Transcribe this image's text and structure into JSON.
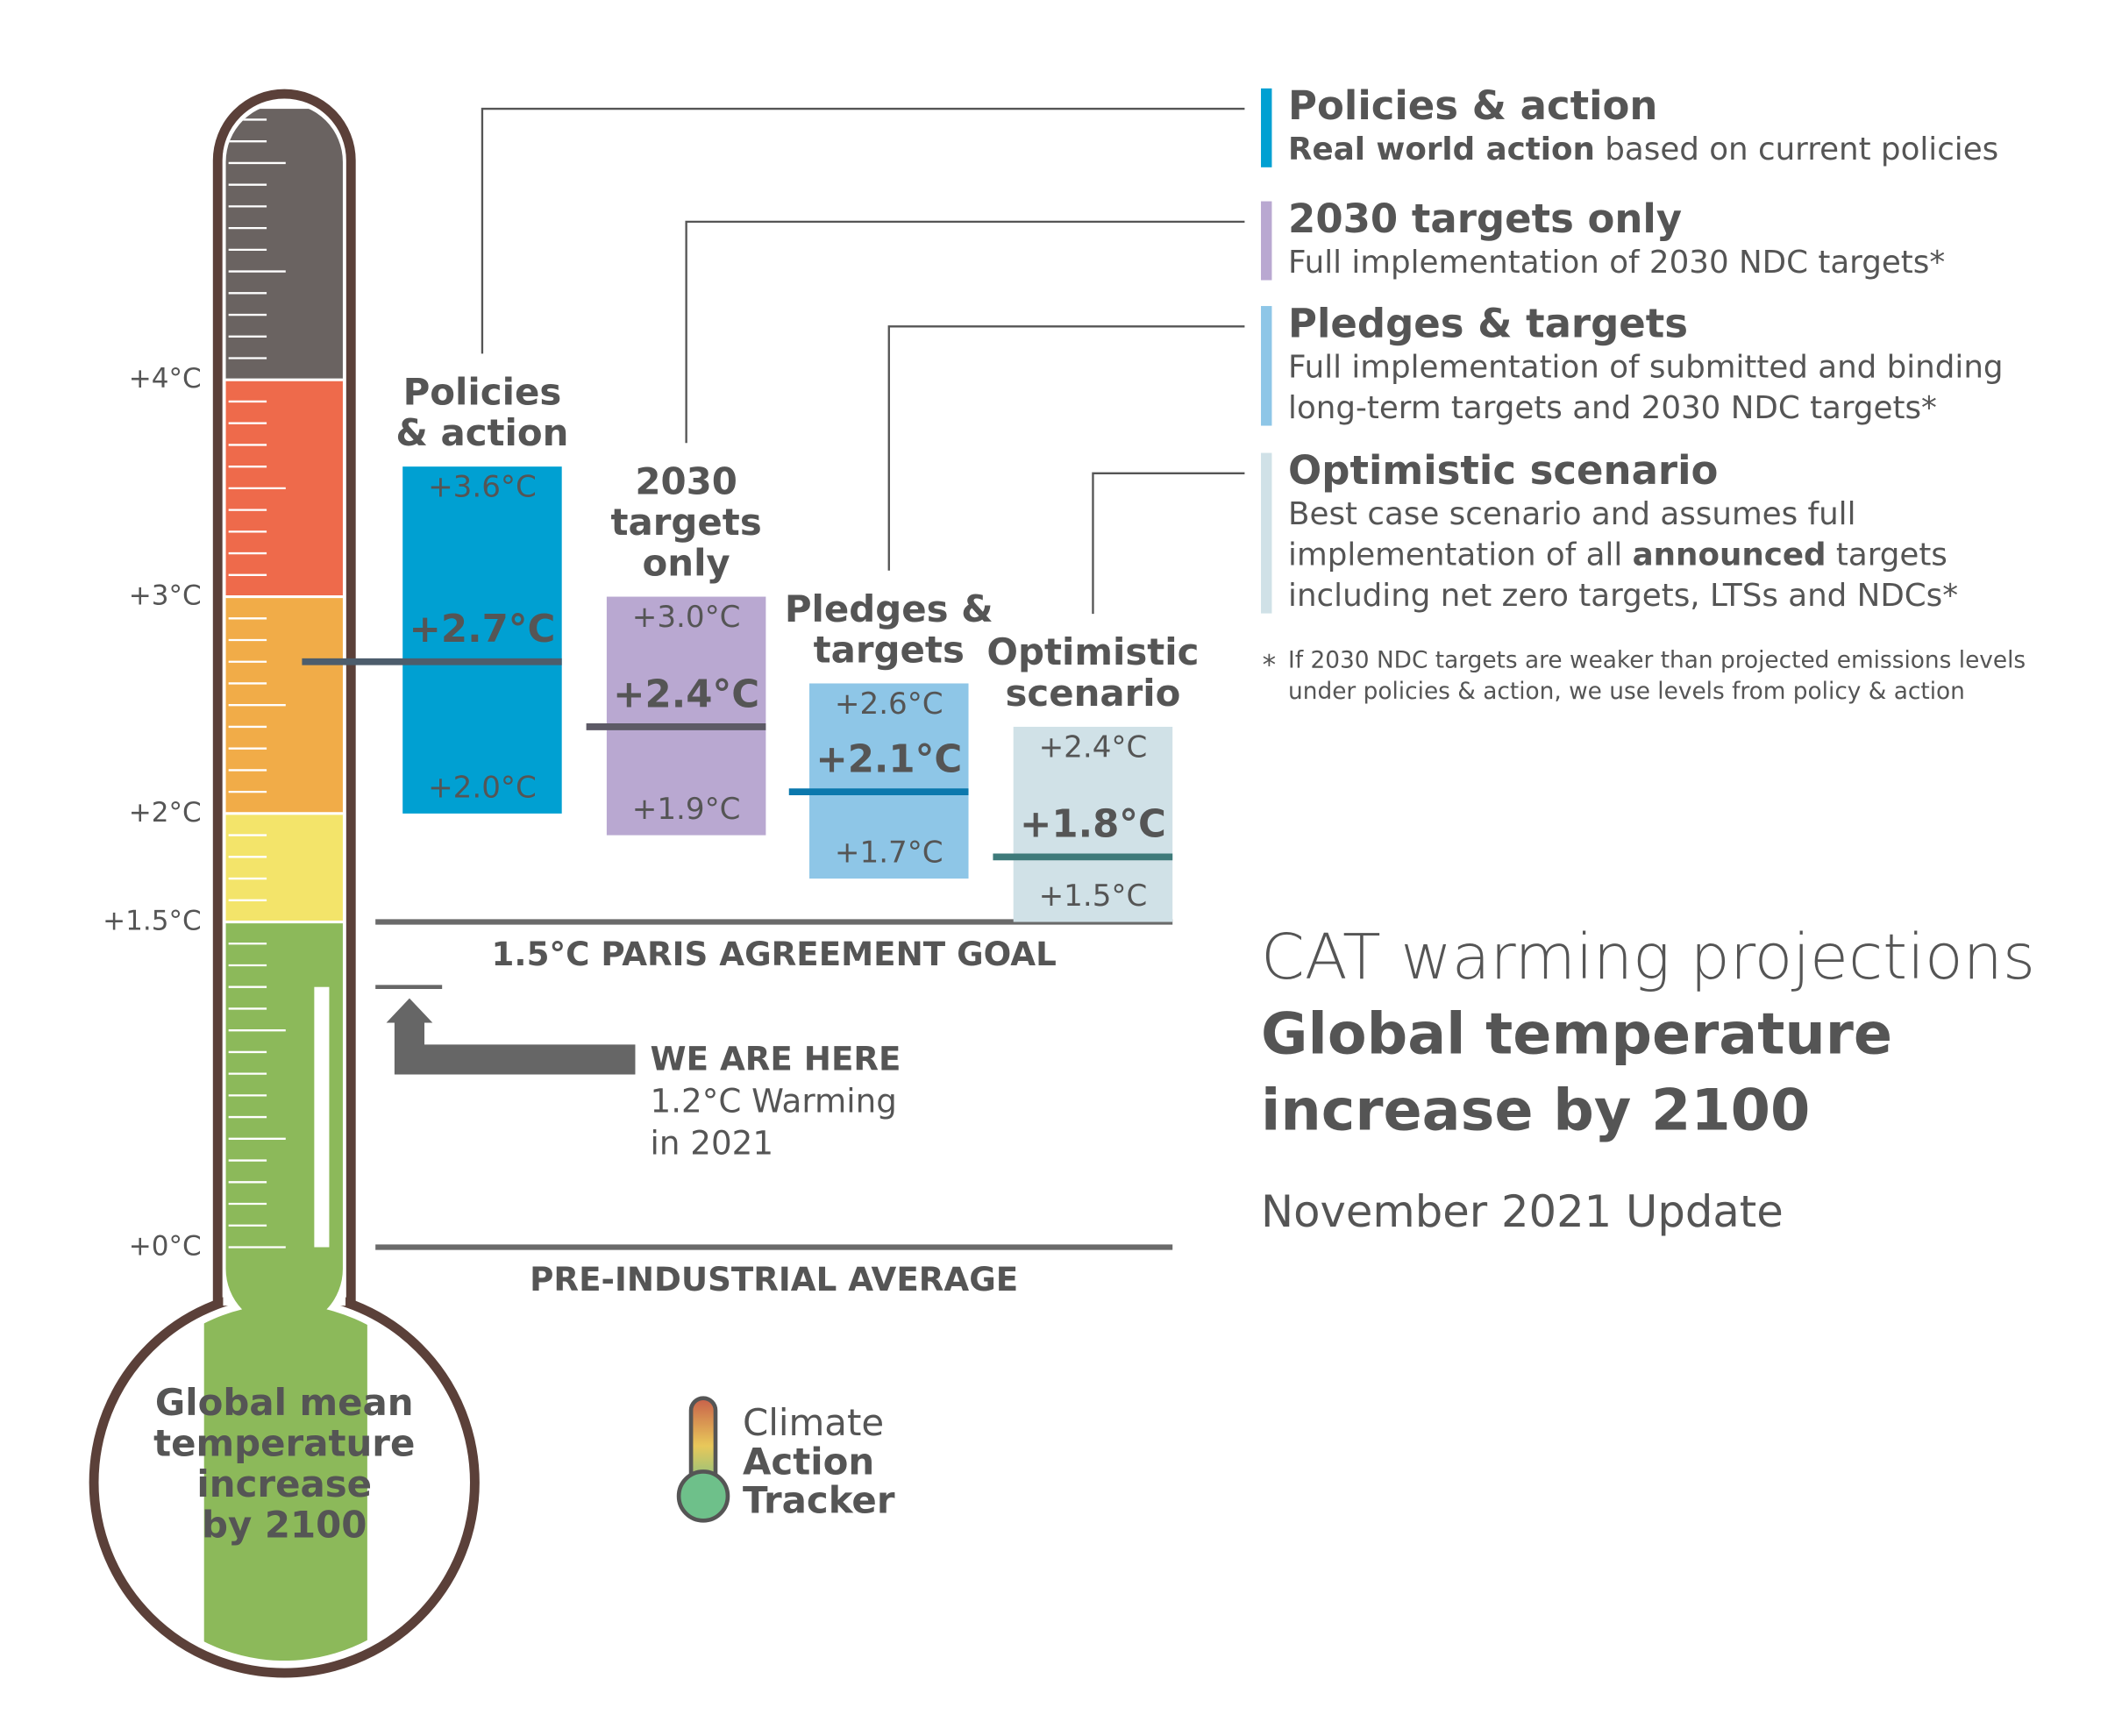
{
  "chart_data": {
    "type": "thermometer",
    "title": "CAT warming projections",
    "subtitle_lines": [
      "Global temperature",
      "increase by 2100"
    ],
    "update": "November 2021 Update",
    "bulb_label_lines": [
      "Global mean",
      "temperature",
      "increase",
      "by 2100"
    ],
    "ylim": [
      0,
      5.25
    ],
    "yticks": [
      {
        "value": 0,
        "label": "+0°C"
      },
      {
        "value": 1.5,
        "label": "+1.5°C"
      },
      {
        "value": 2,
        "label": "+2°C"
      },
      {
        "value": 3,
        "label": "+3°C"
      },
      {
        "value": 4,
        "label": "+4°C"
      }
    ],
    "minor_tick_step": 0.1,
    "bands": [
      {
        "from": 0,
        "to": 1.5,
        "color": "#8cb95a"
      },
      {
        "from": 1.5,
        "to": 2,
        "color": "#f3e46a"
      },
      {
        "from": 2,
        "to": 3,
        "color": "#f1ac48"
      },
      {
        "from": 3,
        "to": 4,
        "color": "#ee6a4b"
      },
      {
        "from": 4,
        "to": 5.25,
        "color": "#6a6361"
      }
    ],
    "current": {
      "value": 1.2,
      "label": "WE ARE HERE",
      "note_lines": [
        "1.2°C Warming",
        "in 2021"
      ]
    },
    "reference_lines": [
      {
        "value": 1.5,
        "label": "1.5°C PARIS AGREEMENT GOAL"
      },
      {
        "value": 0,
        "label": "PRE-INDUSTRIAL AVERAGE"
      }
    ],
    "series": [
      {
        "name": "Policies & action",
        "label_lines": [
          "Policies",
          "& action"
        ],
        "color": "#00a0d2",
        "line_color": "#4d5d6c",
        "title_color": "#1b9ad0",
        "text_color": "#e8f6fc",
        "mid_text_color": "#ffffff",
        "values": [
          3.6,
          2.7,
          2.0
        ],
        "value_labels": [
          "+3.6°C",
          "+2.7°C",
          "+2.0°C"
        ],
        "description": [
          [
            {
              "text": "Real world action",
              "bold": true
            },
            " based on current policies"
          ]
        ]
      },
      {
        "name": "2030 targets only",
        "label_lines": [
          "2030",
          "targets",
          "only"
        ],
        "color": "#b9a8d1",
        "line_color": "#5d5a66",
        "title_color": "#7b5ea7",
        "text_color": "#f4f0fa",
        "mid_text_color": "#55505e",
        "values": [
          3.0,
          2.4,
          1.9
        ],
        "value_labels": [
          "+3.0°C",
          "+2.4°C",
          "+1.9°C"
        ],
        "description": [
          [
            "Full implementation of 2030 NDC targets*"
          ]
        ]
      },
      {
        "name": "Pledges & targets",
        "label_lines": [
          "Pledges &",
          "targets"
        ],
        "color": "#8ec6e7",
        "line_color": "#0b78ad",
        "title_color": "#7fbce3",
        "text_color": "#f0f8fd",
        "mid_text_color": "#0b78ad",
        "values": [
          2.6,
          2.1,
          1.7
        ],
        "value_labels": [
          "+2.6°C",
          "+2.1°C",
          "+1.7°C"
        ],
        "description": [
          [
            "Full implementation of submitted and binding"
          ],
          [
            "long-term targets and 2030 NDC targets*"
          ]
        ]
      },
      {
        "name": "Optimistic scenario",
        "label_lines": [
          "Optimistic",
          "scenario"
        ],
        "color": "#d0e1e7",
        "line_color": "#3e7a7a",
        "title_color": "#3e7a7a",
        "text_color": "#666666",
        "mid_text_color": "#3e7a7a",
        "values": [
          2.4,
          1.8,
          1.5
        ],
        "value_labels": [
          "+2.4°C",
          "+1.8°C",
          "+1.5°C"
        ],
        "description": [
          [
            "Best case scenario and assumes full"
          ],
          [
            "implementation of all ",
            {
              "text": "announced",
              "bold": true
            },
            " targets"
          ],
          [
            "including net zero targets, LTSs and NDCs*"
          ]
        ]
      }
    ],
    "footnote_mark": "*",
    "footnote_lines": [
      "If 2030 NDC targets are weaker than projected emissions levels",
      "under policies & action, we use levels from policy & action"
    ],
    "logo_lines": [
      "Climate",
      "Action",
      "Tracker"
    ]
  }
}
